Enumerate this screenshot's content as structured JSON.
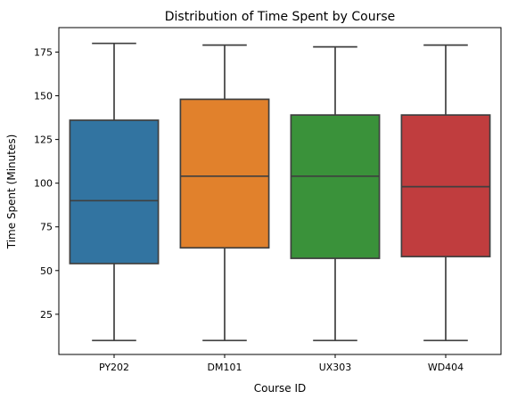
{
  "chart_data": {
    "type": "box",
    "title": "Distribution of Time Spent by Course",
    "xlabel": "Course ID",
    "ylabel": "Time Spent (Minutes)",
    "ylim": [
      2,
      189
    ],
    "yticks": [
      25,
      50,
      75,
      100,
      125,
      150,
      175
    ],
    "grid": false,
    "legend": "none",
    "categories": [
      "PY202",
      "DM101",
      "UX303",
      "WD404"
    ],
    "boxes": [
      {
        "category": "PY202",
        "min": 10,
        "q1": 54,
        "median": 90,
        "q3": 136,
        "max": 180,
        "color": "#3274a1"
      },
      {
        "category": "DM101",
        "min": 10,
        "q1": 63,
        "median": 104,
        "q3": 148,
        "max": 179,
        "color": "#e1812c"
      },
      {
        "category": "UX303",
        "min": 10,
        "q1": 57,
        "median": 104,
        "q3": 139,
        "max": 178,
        "color": "#3a923a"
      },
      {
        "category": "WD404",
        "min": 10,
        "q1": 58,
        "median": 98,
        "q3": 139,
        "max": 179,
        "color": "#c03d3e"
      }
    ],
    "line_color": "#3f3f3f"
  }
}
